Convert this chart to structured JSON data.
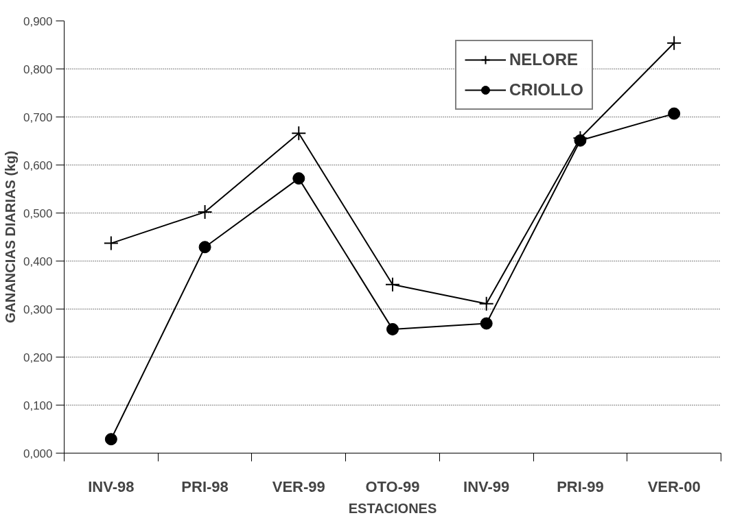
{
  "chart_data": {
    "type": "line",
    "xlabel": "ESTACIONES",
    "ylabel": "GANANCIAS DIARIAS (kg)",
    "categories": [
      "INV-98",
      "PRI-98",
      "VER-99",
      "OTO-99",
      "INV-99",
      "PRI-99",
      "VER-00"
    ],
    "series": [
      {
        "name": "NELORE",
        "color": "#000000",
        "marker": "cross",
        "values": [
          0.437,
          0.502,
          0.666,
          0.351,
          0.311,
          0.656,
          0.854
        ]
      },
      {
        "name": "CRIOLLO",
        "color": "#000000",
        "marker": "circle",
        "values": [
          0.029,
          0.429,
          0.572,
          0.258,
          0.27,
          0.651,
          0.707
        ]
      }
    ],
    "ylim": [
      0,
      0.9
    ],
    "yticks": [
      {
        "value": 0,
        "label": "0,000"
      },
      {
        "value": 0.1,
        "label": "0,100"
      },
      {
        "value": 0.2,
        "label": "0,200"
      },
      {
        "value": 0.3,
        "label": "0,300"
      },
      {
        "value": 0.4,
        "label": "0,400"
      },
      {
        "value": 0.5,
        "label": "0,500"
      },
      {
        "value": 0.6,
        "label": "0,600"
      },
      {
        "value": 0.7,
        "label": "0,700"
      },
      {
        "value": 0.8,
        "label": "0,800"
      },
      {
        "value": 0.9,
        "label": "0,900"
      }
    ],
    "grid": "y",
    "legend": "top right",
    "line_style": "solid"
  }
}
